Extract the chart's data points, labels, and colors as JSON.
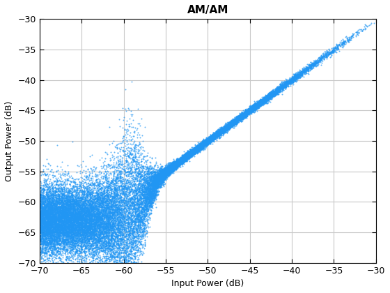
{
  "title": "AM/AM",
  "xlabel": "Input Power (dB)",
  "ylabel": "Output Power (dB)",
  "xlim": [
    -70,
    -30
  ],
  "ylim": [
    -70,
    -30
  ],
  "xticks": [
    -70,
    -65,
    -60,
    -55,
    -50,
    -45,
    -40,
    -35,
    -30
  ],
  "yticks": [
    -70,
    -65,
    -60,
    -55,
    -50,
    -45,
    -40,
    -35,
    -30
  ],
  "marker_color": "#2196F3",
  "marker_size": 2.0,
  "n_points": 30000,
  "seed": 7,
  "background_color": "#ffffff",
  "grid_color": "#c8c8c8",
  "title_fontsize": 11,
  "label_fontsize": 9,
  "tick_fontsize": 9
}
